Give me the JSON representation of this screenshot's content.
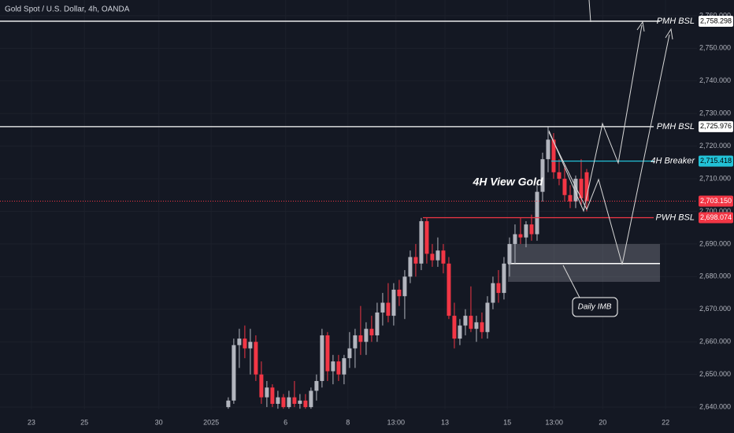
{
  "chart_data": {
    "type": "candlestick",
    "title": "Gold Spot / U.S. Dollar, 4h, OANDA",
    "annotation": "4H View Gold",
    "up_color": "#b2b5be",
    "down_color": "#f23645",
    "open": [
      2640,
      2642,
      2659,
      2661,
      2658,
      2660,
      2650,
      2643,
      2646,
      2641,
      2643,
      2640,
      2643,
      2641,
      2642,
      2640,
      2645,
      2648,
      2662,
      2651,
      2654,
      2650,
      2655,
      2658,
      2662,
      2660,
      2664,
      2662,
      2669,
      2672,
      2668,
      2676,
      2674,
      2680,
      2686,
      2684,
      2697,
      2687,
      2685,
      2688,
      2684,
      2668,
      2661,
      2665,
      2668,
      2664,
      2666,
      2663,
      2672,
      2678,
      2675,
      2684,
      2690,
      2693,
      2692,
      2696,
      2693,
      2706,
      2716,
      2722,
      2712,
      2710,
      2705,
      2703,
      2710,
      2712
    ],
    "high": [
      2643,
      2661,
      2664,
      2665,
      2664,
      2662,
      2654,
      2648,
      2647,
      2645,
      2644,
      2645,
      2648,
      2644,
      2644,
      2646,
      2650,
      2664,
      2663,
      2656,
      2656,
      2656,
      2663,
      2664,
      2671,
      2666,
      2668,
      2672,
      2675,
      2678,
      2678,
      2679,
      2682,
      2688,
      2690,
      2698,
      2698,
      2690,
      2692,
      2690,
      2686,
      2672,
      2667,
      2670,
      2677,
      2668,
      2669,
      2674,
      2680,
      2682,
      2686,
      2692,
      2696,
      2698,
      2697,
      2699,
      2708,
      2718,
      2726,
      2724,
      2716,
      2714,
      2708,
      2711,
      2716,
      2713
    ],
    "low": [
      2639.5,
      2641,
      2652,
      2655,
      2650,
      2648,
      2641,
      2640,
      2640,
      2639.5,
      2639.5,
      2639.5,
      2640,
      2639.5,
      2639.5,
      2639.5,
      2642,
      2646,
      2648,
      2647,
      2648,
      2647,
      2652,
      2652,
      2656,
      2656,
      2660,
      2660,
      2665,
      2666,
      2665,
      2671,
      2667,
      2678,
      2680,
      2682,
      2684,
      2683,
      2683,
      2681,
      2667,
      2658,
      2659,
      2662,
      2663,
      2660,
      2661,
      2661,
      2670,
      2672,
      2673,
      2680,
      2684,
      2690,
      2689,
      2691,
      2691,
      2703,
      2712,
      2710,
      2708,
      2703,
      2701,
      2701,
      2702,
      2700
    ],
    "close": [
      2642,
      2659,
      2661,
      2658,
      2660,
      2650,
      2643,
      2646,
      2641,
      2643,
      2640,
      2643,
      2641,
      2642,
      2640,
      2645,
      2648,
      2662,
      2651,
      2654,
      2650,
      2655,
      2658,
      2662,
      2660,
      2664,
      2662,
      2669,
      2672,
      2668,
      2676,
      2674,
      2680,
      2686,
      2684,
      2697,
      2687,
      2685,
      2688,
      2684,
      2668,
      2661,
      2665,
      2668,
      2664,
      2666,
      2663,
      2672,
      2678,
      2675,
      2684,
      2690,
      2693,
      2692,
      2696,
      2693,
      2706,
      2716,
      2722,
      2712,
      2710,
      2705,
      2703,
      2710,
      2704,
      2703.15
    ],
    "xlim": [
      -41.4,
      85
    ],
    "xticks": [
      {
        "value": -35.7,
        "label": "23"
      },
      {
        "value": -26.1,
        "label": "25"
      },
      {
        "value": -12.6,
        "label": "30"
      },
      {
        "value": -3.1,
        "label": "2025"
      },
      {
        "value": 10.4,
        "label": "6"
      },
      {
        "value": 21.7,
        "label": "8"
      },
      {
        "value": 30.4,
        "label": "13:00"
      },
      {
        "value": 39.3,
        "label": "13"
      },
      {
        "value": 50.6,
        "label": "15"
      },
      {
        "value": 59.1,
        "label": "13:00"
      },
      {
        "value": 67.9,
        "label": "20"
      },
      {
        "value": 79.3,
        "label": "22"
      }
    ],
    "ylim": [
      2639.3,
      2764.8
    ],
    "yticks": [
      {
        "value": 2640,
        "label": "2,640.000"
      },
      {
        "value": 2650,
        "label": "2,650.000"
      },
      {
        "value": 2660,
        "label": "2,660.000"
      },
      {
        "value": 2670,
        "label": "2,670.000"
      },
      {
        "value": 2680,
        "label": "2,680.000"
      },
      {
        "value": 2690,
        "label": "2,690.000"
      },
      {
        "value": 2700,
        "label": "2,700.000"
      },
      {
        "value": 2710,
        "label": "2,710.000"
      },
      {
        "value": 2720,
        "label": "2,720.000"
      },
      {
        "value": 2730,
        "label": "2,730.000"
      },
      {
        "value": 2740,
        "label": "2,740.000"
      },
      {
        "value": 2750,
        "label": "2,750.000"
      },
      {
        "value": 2760,
        "label": "2,760.000"
      }
    ],
    "grid": true,
    "levels": [
      {
        "label": "PMH BSL",
        "value": 2758.298,
        "value_label": "2,758.298",
        "color": "#ffffff"
      },
      {
        "label": "PMH BSL",
        "value": 2725.976,
        "value_label": "2,725.976",
        "color": "#ffffff"
      },
      {
        "label": "4H Breaker",
        "value": 2715.418,
        "value_label": "2,715.418",
        "color": "#22c1d6"
      },
      {
        "value": 2703.15,
        "value_label": "2,703.150",
        "color": "#f23645"
      },
      {
        "label": "PWH BSL",
        "value": 2698.074,
        "value_label": "2,698.074",
        "color": "#f23645"
      }
    ],
    "zone": {
      "label": "Daily IMB",
      "top": 2690,
      "bottom": 2678.4,
      "mid": 2684
    }
  }
}
